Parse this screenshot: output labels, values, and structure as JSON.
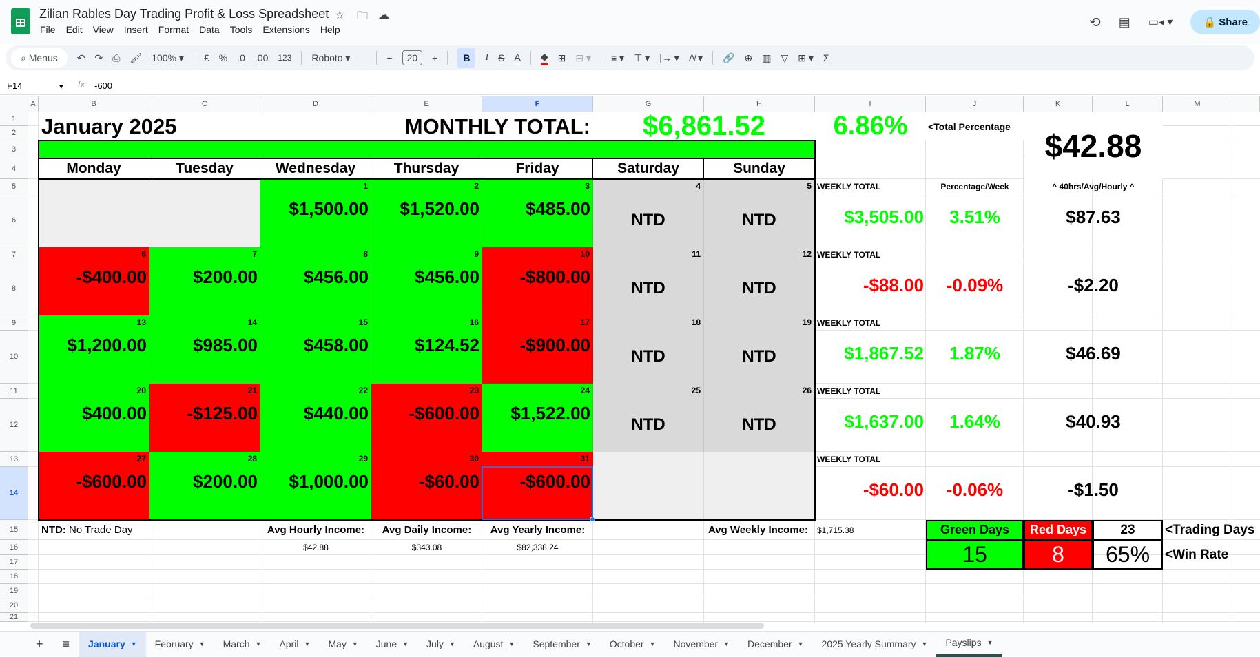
{
  "app": {
    "title": "Zilian Rables Day Trading Profit & Loss Spreadsheet",
    "menu": [
      "File",
      "Edit",
      "View",
      "Insert",
      "Format",
      "Data",
      "Tools",
      "Extensions",
      "Help"
    ],
    "share_label": "Share"
  },
  "toolbar": {
    "search": "Menus",
    "zoom": "100%",
    "currency": "£",
    "percent": "%",
    "dec_less": ".0",
    "dec_more": ".00",
    "number_format": "123",
    "font": "Roboto",
    "font_size": "20",
    "bold": "B",
    "italic": "I",
    "strike": "S",
    "text_color": "A"
  },
  "formula_bar": {
    "cell_ref": "F14",
    "fx": "fx",
    "value": "-600"
  },
  "columns": [
    "A",
    "B",
    "C",
    "D",
    "E",
    "F",
    "G",
    "H",
    "I",
    "J",
    "K",
    "L",
    "M"
  ],
  "rows": [
    "1",
    "2",
    "3",
    "4",
    "5",
    "6",
    "7",
    "8",
    "9",
    "10",
    "11",
    "12",
    "13",
    "14",
    "15",
    "16",
    "17",
    "18",
    "19",
    "20",
    "21"
  ],
  "sheet": {
    "month_title": "January 2025",
    "monthly_total_label": "MONTHLY TOTAL:",
    "monthly_total": "$6,861.52",
    "total_percentage": "6.86%",
    "total_percentage_label": "<Total Percentage",
    "avg_hourly_big": "$42.88",
    "weekdays": [
      "Monday",
      "Tuesday",
      "Wednesday",
      "Thursday",
      "Friday",
      "Saturday",
      "Sunday"
    ],
    "weekly_total_label": "WEEKLY TOTAL",
    "percentage_week_label": "Percentage/Week",
    "hourly_label": "^ 40hrs/Avg/Hourly ^",
    "weeks": [
      {
        "days": [
          {
            "num": "",
            "val": "",
            "status": "empty"
          },
          {
            "num": "",
            "val": "",
            "status": "empty"
          },
          {
            "num": "1",
            "val": "$1,500.00",
            "status": "win"
          },
          {
            "num": "2",
            "val": "$1,520.00",
            "status": "win"
          },
          {
            "num": "3",
            "val": "$485.00",
            "status": "win"
          },
          {
            "num": "4",
            "val": "NTD",
            "status": "ntd"
          },
          {
            "num": "5",
            "val": "NTD",
            "status": "ntd"
          }
        ],
        "total": "$3,505.00",
        "pct": "3.51%",
        "hourly": "$87.63",
        "sign": "pos"
      },
      {
        "days": [
          {
            "num": "6",
            "val": "-$400.00",
            "status": "loss"
          },
          {
            "num": "7",
            "val": "$200.00",
            "status": "win"
          },
          {
            "num": "8",
            "val": "$456.00",
            "status": "win"
          },
          {
            "num": "9",
            "val": "$456.00",
            "status": "win"
          },
          {
            "num": "10",
            "val": "-$800.00",
            "status": "loss"
          },
          {
            "num": "11",
            "val": "NTD",
            "status": "ntd"
          },
          {
            "num": "12",
            "val": "NTD",
            "status": "ntd"
          }
        ],
        "total": "-$88.00",
        "pct": "-0.09%",
        "hourly": "-$2.20",
        "sign": "neg"
      },
      {
        "days": [
          {
            "num": "13",
            "val": "$1,200.00",
            "status": "win"
          },
          {
            "num": "14",
            "val": "$985.00",
            "status": "win"
          },
          {
            "num": "15",
            "val": "$458.00",
            "status": "win"
          },
          {
            "num": "16",
            "val": "$124.52",
            "status": "win"
          },
          {
            "num": "17",
            "val": "-$900.00",
            "status": "loss"
          },
          {
            "num": "18",
            "val": "NTD",
            "status": "ntd"
          },
          {
            "num": "19",
            "val": "NTD",
            "status": "ntd"
          }
        ],
        "total": "$1,867.52",
        "pct": "1.87%",
        "hourly": "$46.69",
        "sign": "pos"
      },
      {
        "days": [
          {
            "num": "20",
            "val": "$400.00",
            "status": "win"
          },
          {
            "num": "21",
            "val": "-$125.00",
            "status": "loss"
          },
          {
            "num": "22",
            "val": "$440.00",
            "status": "win"
          },
          {
            "num": "23",
            "val": "-$600.00",
            "status": "loss"
          },
          {
            "num": "24",
            "val": "$1,522.00",
            "status": "win"
          },
          {
            "num": "25",
            "val": "NTD",
            "status": "ntd"
          },
          {
            "num": "26",
            "val": "NTD",
            "status": "ntd"
          }
        ],
        "total": "$1,637.00",
        "pct": "1.64%",
        "hourly": "$40.93",
        "sign": "pos"
      },
      {
        "days": [
          {
            "num": "27",
            "val": "-$600.00",
            "status": "loss"
          },
          {
            "num": "28",
            "val": "$200.00",
            "status": "win"
          },
          {
            "num": "29",
            "val": "$1,000.00",
            "status": "win"
          },
          {
            "num": "30",
            "val": "-$60.00",
            "status": "loss"
          },
          {
            "num": "31",
            "val": "-$600.00",
            "status": "loss"
          },
          {
            "num": "",
            "val": "",
            "status": "empty"
          },
          {
            "num": "",
            "val": "",
            "status": "empty"
          }
        ],
        "total": "-$60.00",
        "pct": "-0.06%",
        "hourly": "-$1.50",
        "sign": "neg"
      }
    ],
    "ntd_key_bold": "NTD:",
    "ntd_key_text": " No Trade Day",
    "avg_hourly_label": "Avg Hourly Income:",
    "avg_hourly": "$42.88",
    "avg_daily_label": "Avg Daily Income:",
    "avg_daily": "$343.08",
    "avg_yearly_label": "Avg Yearly Income:",
    "avg_yearly": "$82,338.24",
    "avg_weekly_label": "Avg Weekly Income:",
    "avg_weekly": "$1,715.38",
    "stats": {
      "green_days_label": "Green Days",
      "red_days_label": "Red Days",
      "trading_days": "23",
      "trading_days_label": "<Trading Days",
      "green_days": "15",
      "red_days": "8",
      "win_rate": "65%",
      "win_rate_label": "<Win Rate"
    }
  },
  "colors": {
    "win": "#00ff00",
    "loss": "#ff0000",
    "ntd": "#d9d9d9",
    "empty": "#efefef",
    "selection": "#1a73e8"
  },
  "tabs": [
    {
      "label": "January",
      "active": true
    },
    {
      "label": "February"
    },
    {
      "label": "March"
    },
    {
      "label": "April"
    },
    {
      "label": "May"
    },
    {
      "label": "June"
    },
    {
      "label": "July"
    },
    {
      "label": "August"
    },
    {
      "label": "September"
    },
    {
      "label": "October"
    },
    {
      "label": "November"
    },
    {
      "label": "December"
    },
    {
      "label": "2025 Yearly Summary"
    },
    {
      "label": "Payslips"
    }
  ]
}
